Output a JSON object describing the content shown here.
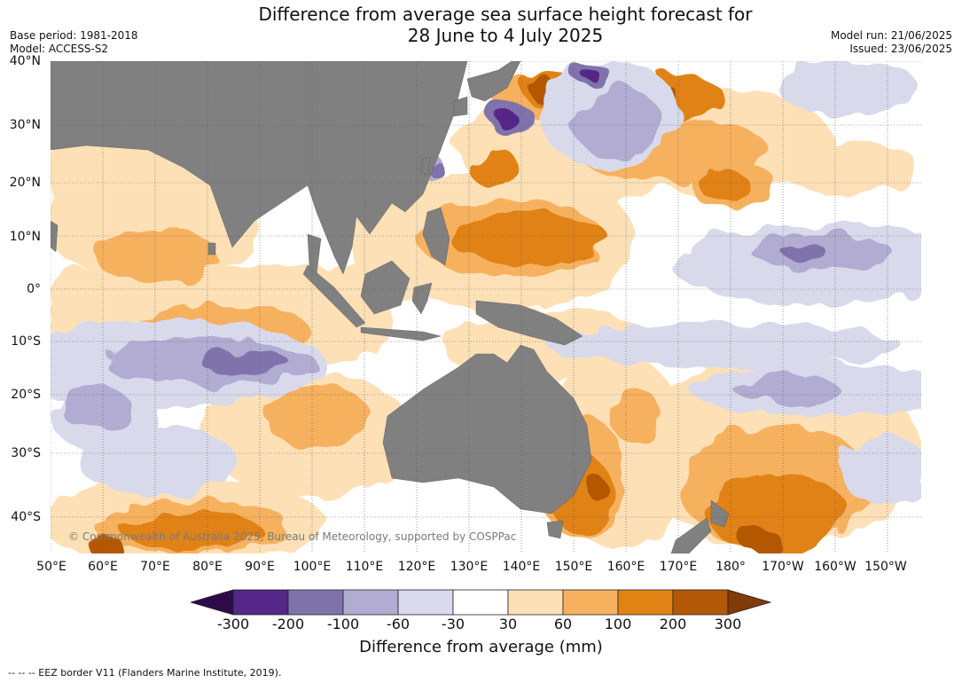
{
  "title_line1": "Difference from average sea surface height forecast for",
  "title_line2": "28 June to 4 July 2025",
  "meta_left": {
    "base_period": "Base period: 1981-2018",
    "model": "Model: ACCESS-S2"
  },
  "meta_right": {
    "model_run": "Model run: 21/06/2025",
    "issued": "Issued: 23/06/2025"
  },
  "lat_labels": [
    "40°N",
    "30°N",
    "20°N",
    "10°N",
    "0°",
    "10°S",
    "20°S",
    "30°S",
    "40°S"
  ],
  "lon_labels": [
    "50°E",
    "60°E",
    "70°E",
    "80°E",
    "90°E",
    "100°E",
    "110°E",
    "120°E",
    "130°E",
    "140°E",
    "150°E",
    "160°E",
    "170°E",
    "180°",
    "170°W",
    "160°W",
    "150°W"
  ],
  "colorbar": {
    "label": "Difference from average (mm)",
    "ticks": [
      "-300",
      "-200",
      "-100",
      "-60",
      "-30",
      "30",
      "60",
      "100",
      "200",
      "300"
    ],
    "colors": {
      "below_min": "#2d0b4a",
      "-300_-200": "#542788",
      "-200_-100": "#8073ac",
      "-100_-60": "#b2abd2",
      "-60_-30": "#d8daeb",
      "-30_30": "#ffffff",
      "30_60": "#fee0b6",
      "60_100": "#f6b15e",
      "100_200": "#e08214",
      "200_300": "#b35806",
      "above_max": "#7f3b08"
    },
    "land": "#808080"
  },
  "copyright": "© Commonwealth of Australia 2025, Bureau of Meteorology, supported by COSPPac",
  "eez_note": "--  --  -- EEZ border V11 (Flanders Marine Institute, 2019)."
}
